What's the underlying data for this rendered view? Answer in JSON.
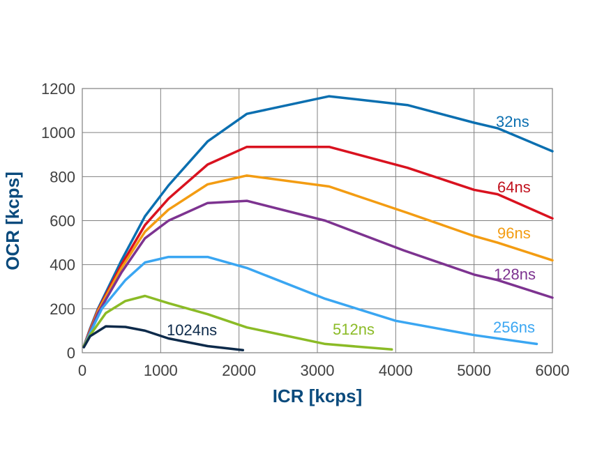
{
  "chart_data": {
    "type": "line",
    "title": "",
    "xlabel": "ICR [kcps]",
    "ylabel": "OCR [kcps]",
    "xlim": [
      0,
      6000
    ],
    "ylim": [
      0,
      1200
    ],
    "x_ticks": [
      "0",
      "1000",
      "2000",
      "3000",
      "4000",
      "5000",
      "6000"
    ],
    "y_ticks": [
      "0",
      "200",
      "400",
      "600",
      "800",
      "1000",
      "1200"
    ],
    "grid": true,
    "legend": "inline labels",
    "series": [
      {
        "name": "32ns",
        "color": "#0b6fb0",
        "points": [
          [
            20,
            30
          ],
          [
            100,
            110
          ],
          [
            200,
            200
          ],
          [
            500,
            420
          ],
          [
            800,
            620
          ],
          [
            1100,
            760
          ],
          [
            1600,
            960
          ],
          [
            2100,
            1085
          ],
          [
            3150,
            1165
          ],
          [
            4150,
            1125
          ],
          [
            5000,
            1045
          ],
          [
            5300,
            1020
          ],
          [
            6000,
            915
          ]
        ]
      },
      {
        "name": "64ns",
        "color": "#d9121f",
        "points": [
          [
            20,
            30
          ],
          [
            100,
            105
          ],
          [
            200,
            195
          ],
          [
            500,
            400
          ],
          [
            800,
            580
          ],
          [
            1100,
            700
          ],
          [
            1600,
            855
          ],
          [
            2100,
            935
          ],
          [
            3150,
            935
          ],
          [
            4150,
            840
          ],
          [
            5000,
            740
          ],
          [
            5300,
            720
          ],
          [
            6000,
            610
          ]
        ]
      },
      {
        "name": "96ns",
        "color": "#f39c12",
        "points": [
          [
            20,
            30
          ],
          [
            100,
            100
          ],
          [
            200,
            190
          ],
          [
            500,
            385
          ],
          [
            800,
            550
          ],
          [
            1100,
            650
          ],
          [
            1600,
            765
          ],
          [
            2100,
            805
          ],
          [
            3150,
            755
          ],
          [
            4150,
            635
          ],
          [
            5000,
            530
          ],
          [
            5300,
            500
          ],
          [
            6000,
            420
          ]
        ]
      },
      {
        "name": "128ns",
        "color": "#7d3390",
        "points": [
          [
            20,
            30
          ],
          [
            100,
            95
          ],
          [
            200,
            180
          ],
          [
            500,
            365
          ],
          [
            800,
            520
          ],
          [
            1100,
            600
          ],
          [
            1600,
            680
          ],
          [
            2100,
            690
          ],
          [
            3100,
            600
          ],
          [
            4100,
            465
          ],
          [
            5000,
            355
          ],
          [
            5300,
            330
          ],
          [
            6000,
            250
          ]
        ]
      },
      {
        "name": "256ns",
        "color": "#3aa6f2",
        "points": [
          [
            20,
            30
          ],
          [
            100,
            90
          ],
          [
            250,
            200
          ],
          [
            550,
            330
          ],
          [
            800,
            410
          ],
          [
            1100,
            435
          ],
          [
            1600,
            435
          ],
          [
            2100,
            385
          ],
          [
            3100,
            245
          ],
          [
            4000,
            145
          ],
          [
            5000,
            80
          ],
          [
            5800,
            40
          ]
        ]
      },
      {
        "name": "512ns",
        "color": "#8bbb26",
        "points": [
          [
            20,
            30
          ],
          [
            100,
            80
          ],
          [
            300,
            180
          ],
          [
            550,
            235
          ],
          [
            800,
            258
          ],
          [
            1100,
            225
          ],
          [
            1600,
            175
          ],
          [
            2100,
            115
          ],
          [
            3100,
            40
          ],
          [
            3950,
            15
          ]
        ]
      },
      {
        "name": "1024ns",
        "color": "#0d2a4a",
        "points": [
          [
            20,
            25
          ],
          [
            100,
            75
          ],
          [
            300,
            120
          ],
          [
            550,
            117
          ],
          [
            800,
            100
          ],
          [
            1100,
            65
          ],
          [
            1600,
            30
          ],
          [
            2050,
            12
          ]
        ]
      }
    ]
  },
  "labels": {
    "s32": "32ns",
    "s64": "64ns",
    "s96": "96ns",
    "s128": "128ns",
    "s256": "256ns",
    "s512": "512ns",
    "s1024": "1024ns"
  }
}
